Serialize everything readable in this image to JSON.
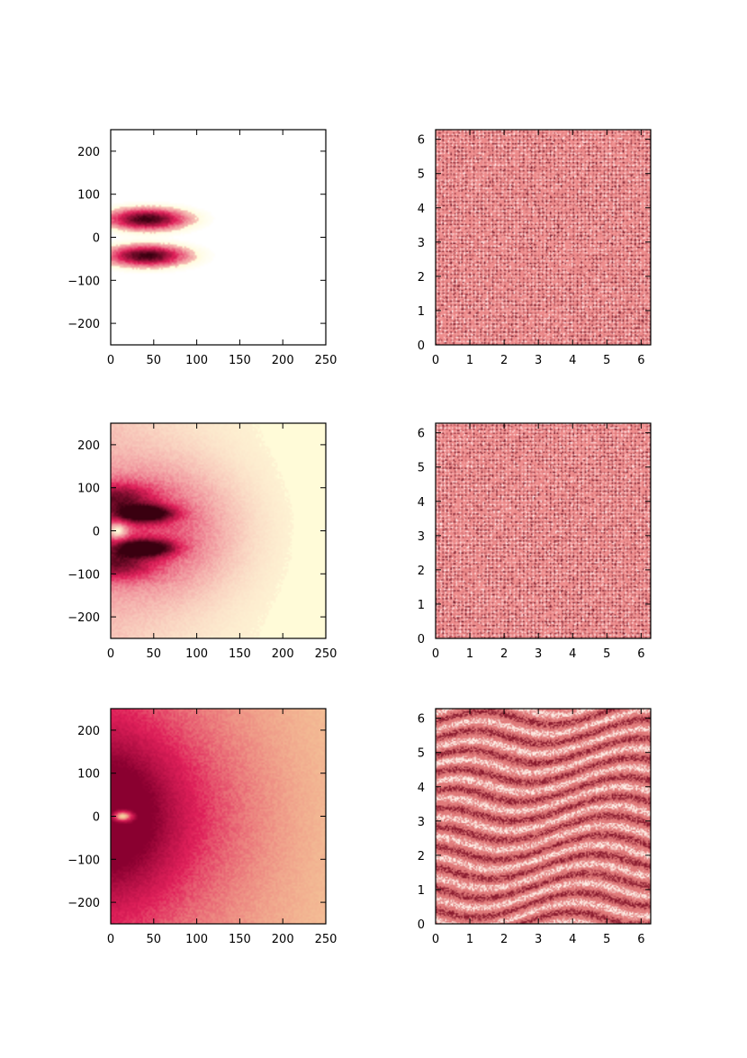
{
  "chart_data": [
    {
      "type": "heatmap",
      "row": 1,
      "col": 1,
      "xlim": [
        0,
        250
      ],
      "ylim": [
        -250,
        250
      ],
      "xticks": [
        0,
        50,
        100,
        150,
        200,
        250
      ],
      "yticks": [
        -200,
        -100,
        0,
        100,
        200
      ],
      "colors": {
        "background": "#ffffff",
        "low": "#fffbd8",
        "mid": "#e0205a",
        "high": "#3a0010"
      },
      "blobs": [
        {
          "x": 42,
          "y": 42,
          "sx": 28,
          "sy": 15,
          "amp": 1.0
        },
        {
          "x": 42,
          "y": -43,
          "sx": 28,
          "sy": 15,
          "amp": 1.0
        }
      ],
      "haze": {
        "amp": 0.0,
        "decay": 100
      }
    },
    {
      "type": "heatmap",
      "row": 1,
      "col": 2,
      "xlim": [
        0,
        6.28
      ],
      "ylim": [
        0,
        6.28
      ],
      "xticks": [
        0,
        1,
        2,
        3,
        4,
        5,
        6
      ],
      "yticks": [
        0,
        1,
        2,
        3,
        4,
        5,
        6
      ],
      "colors": {
        "base": "#ee8c8c",
        "dark": "#7a2030",
        "light": "#ffe6e6"
      },
      "texture": "crosshatch"
    },
    {
      "type": "heatmap",
      "row": 2,
      "col": 1,
      "xlim": [
        0,
        250
      ],
      "ylim": [
        -250,
        250
      ],
      "xticks": [
        0,
        50,
        100,
        150,
        200,
        250
      ],
      "yticks": [
        -200,
        -100,
        0,
        100,
        200
      ],
      "colors": {
        "background": "#fffbd8",
        "low": "#fffbd8",
        "mid": "#e0205a",
        "high": "#3a0010"
      },
      "blobs": [
        {
          "x": 40,
          "y": 40,
          "sx": 22,
          "sy": 13,
          "amp": 1.0
        },
        {
          "x": 40,
          "y": -40,
          "sx": 22,
          "sy": 13,
          "amp": 1.0
        },
        {
          "x": 5,
          "y": 75,
          "sx": 30,
          "sy": 25,
          "amp": 0.55
        },
        {
          "x": 5,
          "y": -75,
          "sx": 30,
          "sy": 25,
          "amp": 0.55
        },
        {
          "x": 50,
          "y": 0,
          "sx": 60,
          "sy": 100,
          "amp": 0.35
        }
      ],
      "holes": [
        {
          "x": 8,
          "y": 0,
          "sx": 8,
          "sy": 12
        }
      ],
      "haze": {
        "amp": 0.12,
        "decay": 90
      }
    },
    {
      "type": "heatmap",
      "row": 2,
      "col": 2,
      "xlim": [
        0,
        6.28
      ],
      "ylim": [
        0,
        6.28
      ],
      "xticks": [
        0,
        1,
        2,
        3,
        4,
        5,
        6
      ],
      "yticks": [
        0,
        1,
        2,
        3,
        4,
        5,
        6
      ],
      "colors": {
        "base": "#ee8c8c",
        "dark": "#7a2030",
        "light": "#ffe6e6"
      },
      "texture": "crosshatch"
    },
    {
      "type": "heatmap",
      "row": 3,
      "col": 1,
      "xlim": [
        0,
        250
      ],
      "ylim": [
        -250,
        250
      ],
      "xticks": [
        0,
        50,
        100,
        150,
        200,
        250
      ],
      "yticks": [
        -200,
        -100,
        0,
        100,
        200
      ],
      "colors": {
        "background": "#f7d9a0",
        "low": "#f7d9a0",
        "mid": "#e0205a",
        "high": "#8a0030"
      },
      "blobs": [
        {
          "x": 0,
          "y": 0,
          "sx": 45,
          "sy": 110,
          "amp": 0.75
        },
        {
          "x": 30,
          "y": 0,
          "sx": 90,
          "sy": 160,
          "amp": 0.35
        }
      ],
      "holes": [
        {
          "x": 14,
          "y": 0,
          "sx": 10,
          "sy": 11
        }
      ],
      "haze": {
        "amp": 0.35,
        "decay": 160
      }
    },
    {
      "type": "heatmap",
      "row": 3,
      "col": 2,
      "xlim": [
        0,
        6.28
      ],
      "ylim": [
        0,
        6.28
      ],
      "xticks": [
        0,
        1,
        2,
        3,
        4,
        5,
        6
      ],
      "yticks": [
        0,
        1,
        2,
        3,
        4,
        5,
        6
      ],
      "colors": {
        "base": "#e07a7a",
        "dark": "#8a1a2e",
        "light": "#fff0e8"
      },
      "texture": "streaks"
    }
  ]
}
